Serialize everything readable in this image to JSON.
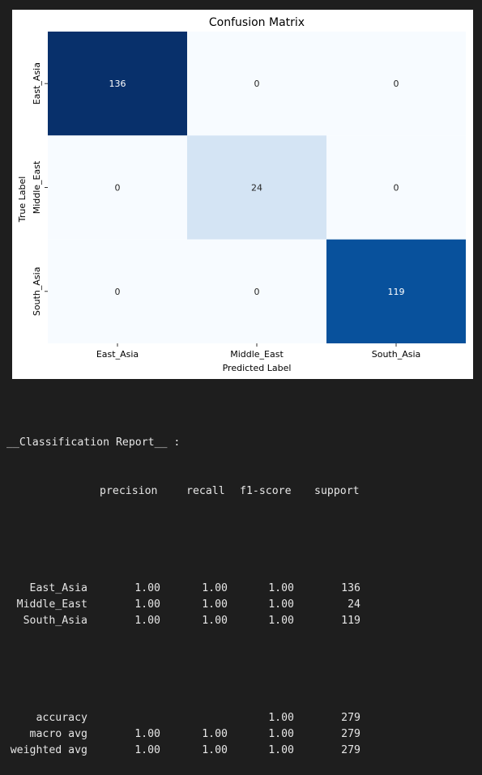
{
  "chart_data": {
    "type": "heatmap",
    "title": "Confusion Matrix",
    "xlabel": "Predicted Label",
    "ylabel": "True Label",
    "x_categories": [
      "East_Asia",
      "Middle_East",
      "South_Asia"
    ],
    "y_categories": [
      "East_Asia",
      "Middle_East",
      "South_Asia"
    ],
    "values": [
      [
        136,
        0,
        0
      ],
      [
        0,
        24,
        0
      ],
      [
        0,
        0,
        119
      ]
    ],
    "colormap": "Blues",
    "colorbar": false,
    "annotations": true
  },
  "report": {
    "title": "__Classification Report__ :",
    "headers": [
      "precision",
      "recall",
      "f1-score",
      "support"
    ],
    "rows": [
      {
        "label": "East_Asia",
        "precision": "1.00",
        "recall": "1.00",
        "f1": "1.00",
        "support": "136"
      },
      {
        "label": "Middle_East",
        "precision": "1.00",
        "recall": "1.00",
        "f1": "1.00",
        "support": "24"
      },
      {
        "label": "South_Asia",
        "precision": "1.00",
        "recall": "1.00",
        "f1": "1.00",
        "support": "119"
      }
    ],
    "summary": [
      {
        "label": "accuracy",
        "precision": "",
        "recall": "",
        "f1": "1.00",
        "support": "279"
      },
      {
        "label": "macro avg",
        "precision": "1.00",
        "recall": "1.00",
        "f1": "1.00",
        "support": "279"
      },
      {
        "label": "weighted avg",
        "precision": "1.00",
        "recall": "1.00",
        "f1": "1.00",
        "support": "279"
      }
    ]
  }
}
